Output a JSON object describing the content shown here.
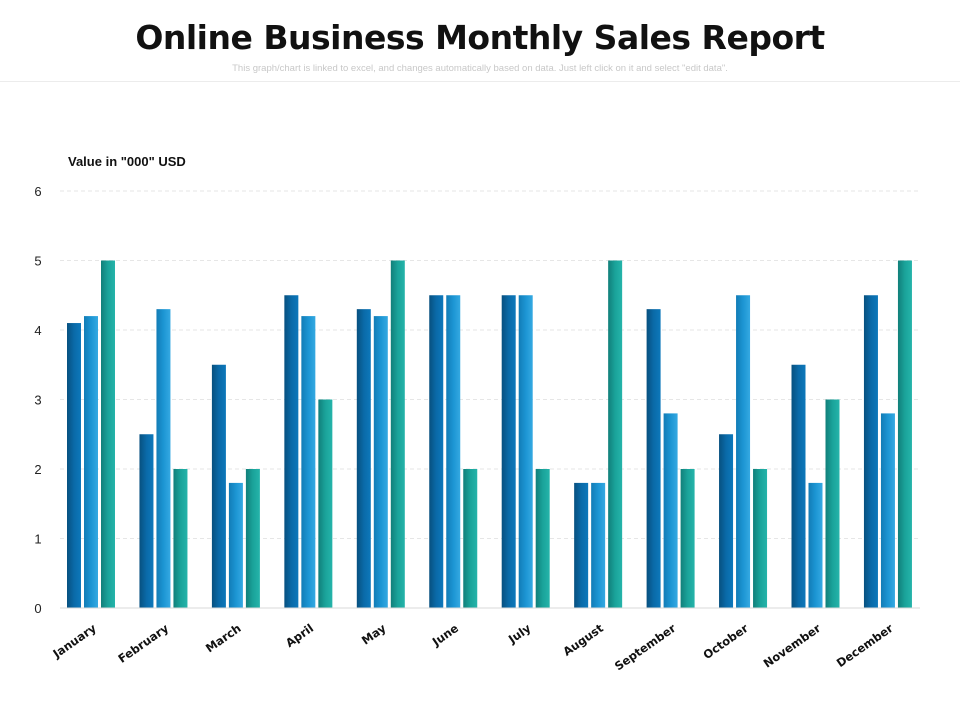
{
  "header": {
    "title": "Online Business Monthly Sales Report",
    "subtitle": "This graph/chart is linked to excel, and changes automatically based on data. Just left click on it and select \"edit data\"."
  },
  "chart_data": {
    "type": "bar",
    "ylabel": "Value in \"000\" USD",
    "xlabel": "",
    "ylim": [
      0,
      6
    ],
    "yticks": [
      0,
      1,
      2,
      3,
      4,
      5,
      6
    ],
    "grid": true,
    "categories": [
      "January",
      "February",
      "March",
      "April",
      "May",
      "June",
      "July",
      "August",
      "September",
      "October",
      "November",
      "December"
    ],
    "series": [
      {
        "color": "#0a6aa8",
        "values": [
          4.1,
          2.5,
          3.5,
          4.5,
          4.3,
          4.5,
          4.5,
          1.8,
          4.3,
          2.5,
          3.5,
          4.5
        ]
      },
      {
        "color": "#1c95d3",
        "values": [
          4.2,
          4.3,
          1.8,
          4.2,
          4.2,
          4.5,
          4.5,
          1.8,
          2.8,
          4.5,
          1.8,
          2.8
        ]
      },
      {
        "color": "#1aa39a",
        "values": [
          5,
          2,
          2,
          3,
          5,
          2,
          2,
          5,
          2,
          2,
          3,
          5
        ]
      }
    ]
  }
}
